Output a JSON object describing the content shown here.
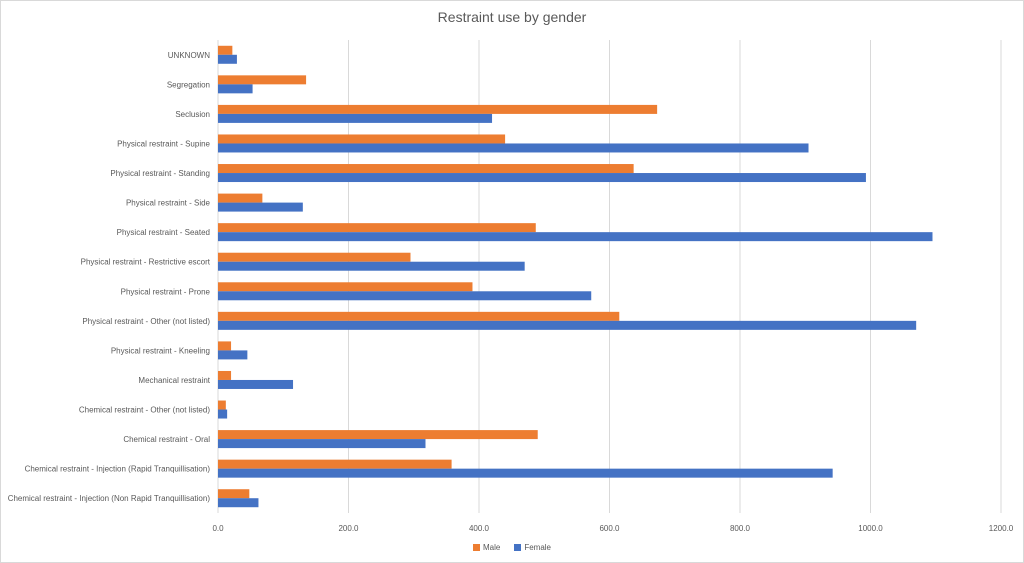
{
  "chart_data": {
    "type": "bar",
    "orientation": "horizontal",
    "title": "Restraint use by gender",
    "xlabel": "",
    "ylabel": "",
    "xlim": [
      0,
      1200
    ],
    "x_ticks": [
      "0.0",
      "200.0",
      "400.0",
      "600.0",
      "800.0",
      "1000.0",
      "1200.0"
    ],
    "x_tick_values": [
      0,
      200,
      400,
      600,
      800,
      1000,
      1200
    ],
    "grid": true,
    "legend_position": "bottom",
    "categories": [
      "UNKNOWN",
      "Segregation",
      "Seclusion",
      "Physical restraint - Supine",
      "Physical restraint - Standing",
      "Physical restraint - Side",
      "Physical restraint - Seated",
      "Physical restraint - Restrictive escort",
      "Physical restraint - Prone",
      "Physical restraint - Other (not listed)",
      "Physical restraint - Kneeling",
      "Mechanical restraint",
      "Chemical restraint - Other (not listed)",
      "Chemical restraint - Oral",
      "Chemical restraint - Injection (Rapid Tranquillisation)",
      "Chemical restraint - Injection (Non Rapid Tranquillisation)"
    ],
    "series": [
      {
        "name": "Male",
        "color": "#ed7d31",
        "values": [
          22,
          135,
          673,
          440,
          637,
          68,
          487,
          295,
          390,
          615,
          20,
          20,
          12,
          490,
          358,
          48
        ]
      },
      {
        "name": "Female",
        "color": "#4472c4",
        "values": [
          29,
          53,
          420,
          905,
          993,
          130,
          1095,
          470,
          572,
          1070,
          45,
          115,
          14,
          318,
          942,
          62
        ]
      }
    ]
  }
}
